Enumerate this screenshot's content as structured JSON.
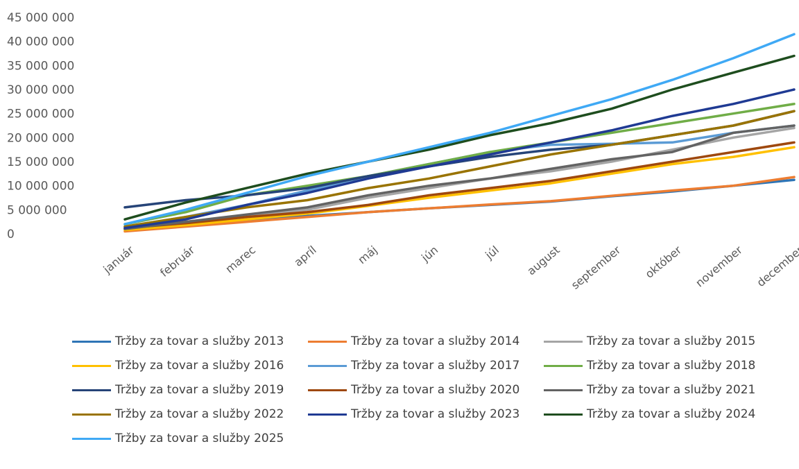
{
  "chart_data": {
    "type": "line",
    "categories": [
      "január",
      "február",
      "marec",
      "apríl",
      "máj",
      "jún",
      "júl",
      "august",
      "september",
      "október",
      "november",
      "december"
    ],
    "y_ticks": [
      "0",
      "5 000 000",
      "10 000 000",
      "15 000 000",
      "20 000 000",
      "25 000 000",
      "30 000 000",
      "35 000 000",
      "40 000 000",
      "45 000 000"
    ],
    "ylim": [
      0,
      45000000
    ],
    "grid": false,
    "legend_position": "bottom",
    "series": [
      {
        "name": "Tržby za tovar a služby 2013",
        "color": "#2E75B6",
        "values": [
          900000,
          1800000,
          2700000,
          3700000,
          4500000,
          5300000,
          6000000,
          6700000,
          7800000,
          8800000,
          10000000,
          11200000
        ]
      },
      {
        "name": "Tržby za tovar a služby 2014",
        "color": "#ED7D31",
        "values": [
          500000,
          1500000,
          2500000,
          3500000,
          4500000,
          5300000,
          6100000,
          6800000,
          7900000,
          9000000,
          10000000,
          11800000
        ]
      },
      {
        "name": "Tržby za tovar a služby 2015",
        "color": "#A5A5A5",
        "values": [
          1000000,
          2500000,
          3800000,
          5000000,
          7500000,
          9500000,
          11500000,
          13000000,
          15000000,
          17500000,
          20000000,
          22000000
        ]
      },
      {
        "name": "Tržby za tovar a služby 2016",
        "color": "#FFC000",
        "values": [
          800000,
          1800000,
          3000000,
          4200000,
          5800000,
          7500000,
          9000000,
          10500000,
          12500000,
          14500000,
          16000000,
          18000000
        ]
      },
      {
        "name": "Tržby za tovar a služby 2017",
        "color": "#5B9BD5",
        "values": [
          1500000,
          3500000,
          6000000,
          9000000,
          12000000,
          14500000,
          17000000,
          18500000,
          18700000,
          19000000,
          21000000,
          22500000
        ]
      },
      {
        "name": "Tržby za tovar a služby 2018",
        "color": "#70AD47",
        "values": [
          2000000,
          4500000,
          8000000,
          10000000,
          12000000,
          14500000,
          17000000,
          19000000,
          21000000,
          23000000,
          25000000,
          27000000
        ]
      },
      {
        "name": "Tržby za tovar a služby 2019",
        "color": "#264478",
        "values": [
          5500000,
          7000000,
          8000000,
          9500000,
          12000000,
          14000000,
          16000000,
          17500000,
          18500000,
          20500000,
          22500000,
          25500000
        ]
      },
      {
        "name": "Tržby za tovar a služby 2020",
        "color": "#9E480E",
        "values": [
          1200000,
          2200000,
          3500000,
          4500000,
          6000000,
          8000000,
          9500000,
          11000000,
          13000000,
          15000000,
          17000000,
          19000000
        ]
      },
      {
        "name": "Tržby za tovar a služby 2021",
        "color": "#636363",
        "values": [
          1000000,
          2500000,
          4000000,
          5500000,
          8000000,
          10000000,
          11500000,
          13500000,
          15500000,
          17000000,
          21000000,
          22500000
        ]
      },
      {
        "name": "Tržby za tovar a služby 2022",
        "color": "#997300",
        "values": [
          1500000,
          3500000,
          5500000,
          7000000,
          9500000,
          11500000,
          14000000,
          16500000,
          18500000,
          20500000,
          22500000,
          25500000
        ]
      },
      {
        "name": "Tržby za tovar a služby 2023",
        "color": "#1F3A93",
        "values": [
          1200000,
          3000000,
          6000000,
          8500000,
          11500000,
          14000000,
          16500000,
          19000000,
          21500000,
          24500000,
          27000000,
          30000000
        ]
      },
      {
        "name": "Tržby za tovar a služby 2024",
        "color": "#1E4D1E",
        "values": [
          3000000,
          6500000,
          9500000,
          12500000,
          15000000,
          17500000,
          20500000,
          23000000,
          26000000,
          30000000,
          33500000,
          37000000
        ]
      },
      {
        "name": "Tržby za tovar a služby 2025",
        "color": "#3FA9F5",
        "values": [
          2000000,
          5000000,
          8500000,
          12000000,
          15000000,
          18000000,
          21000000,
          24500000,
          28000000,
          32000000,
          36500000,
          41500000
        ]
      }
    ]
  }
}
